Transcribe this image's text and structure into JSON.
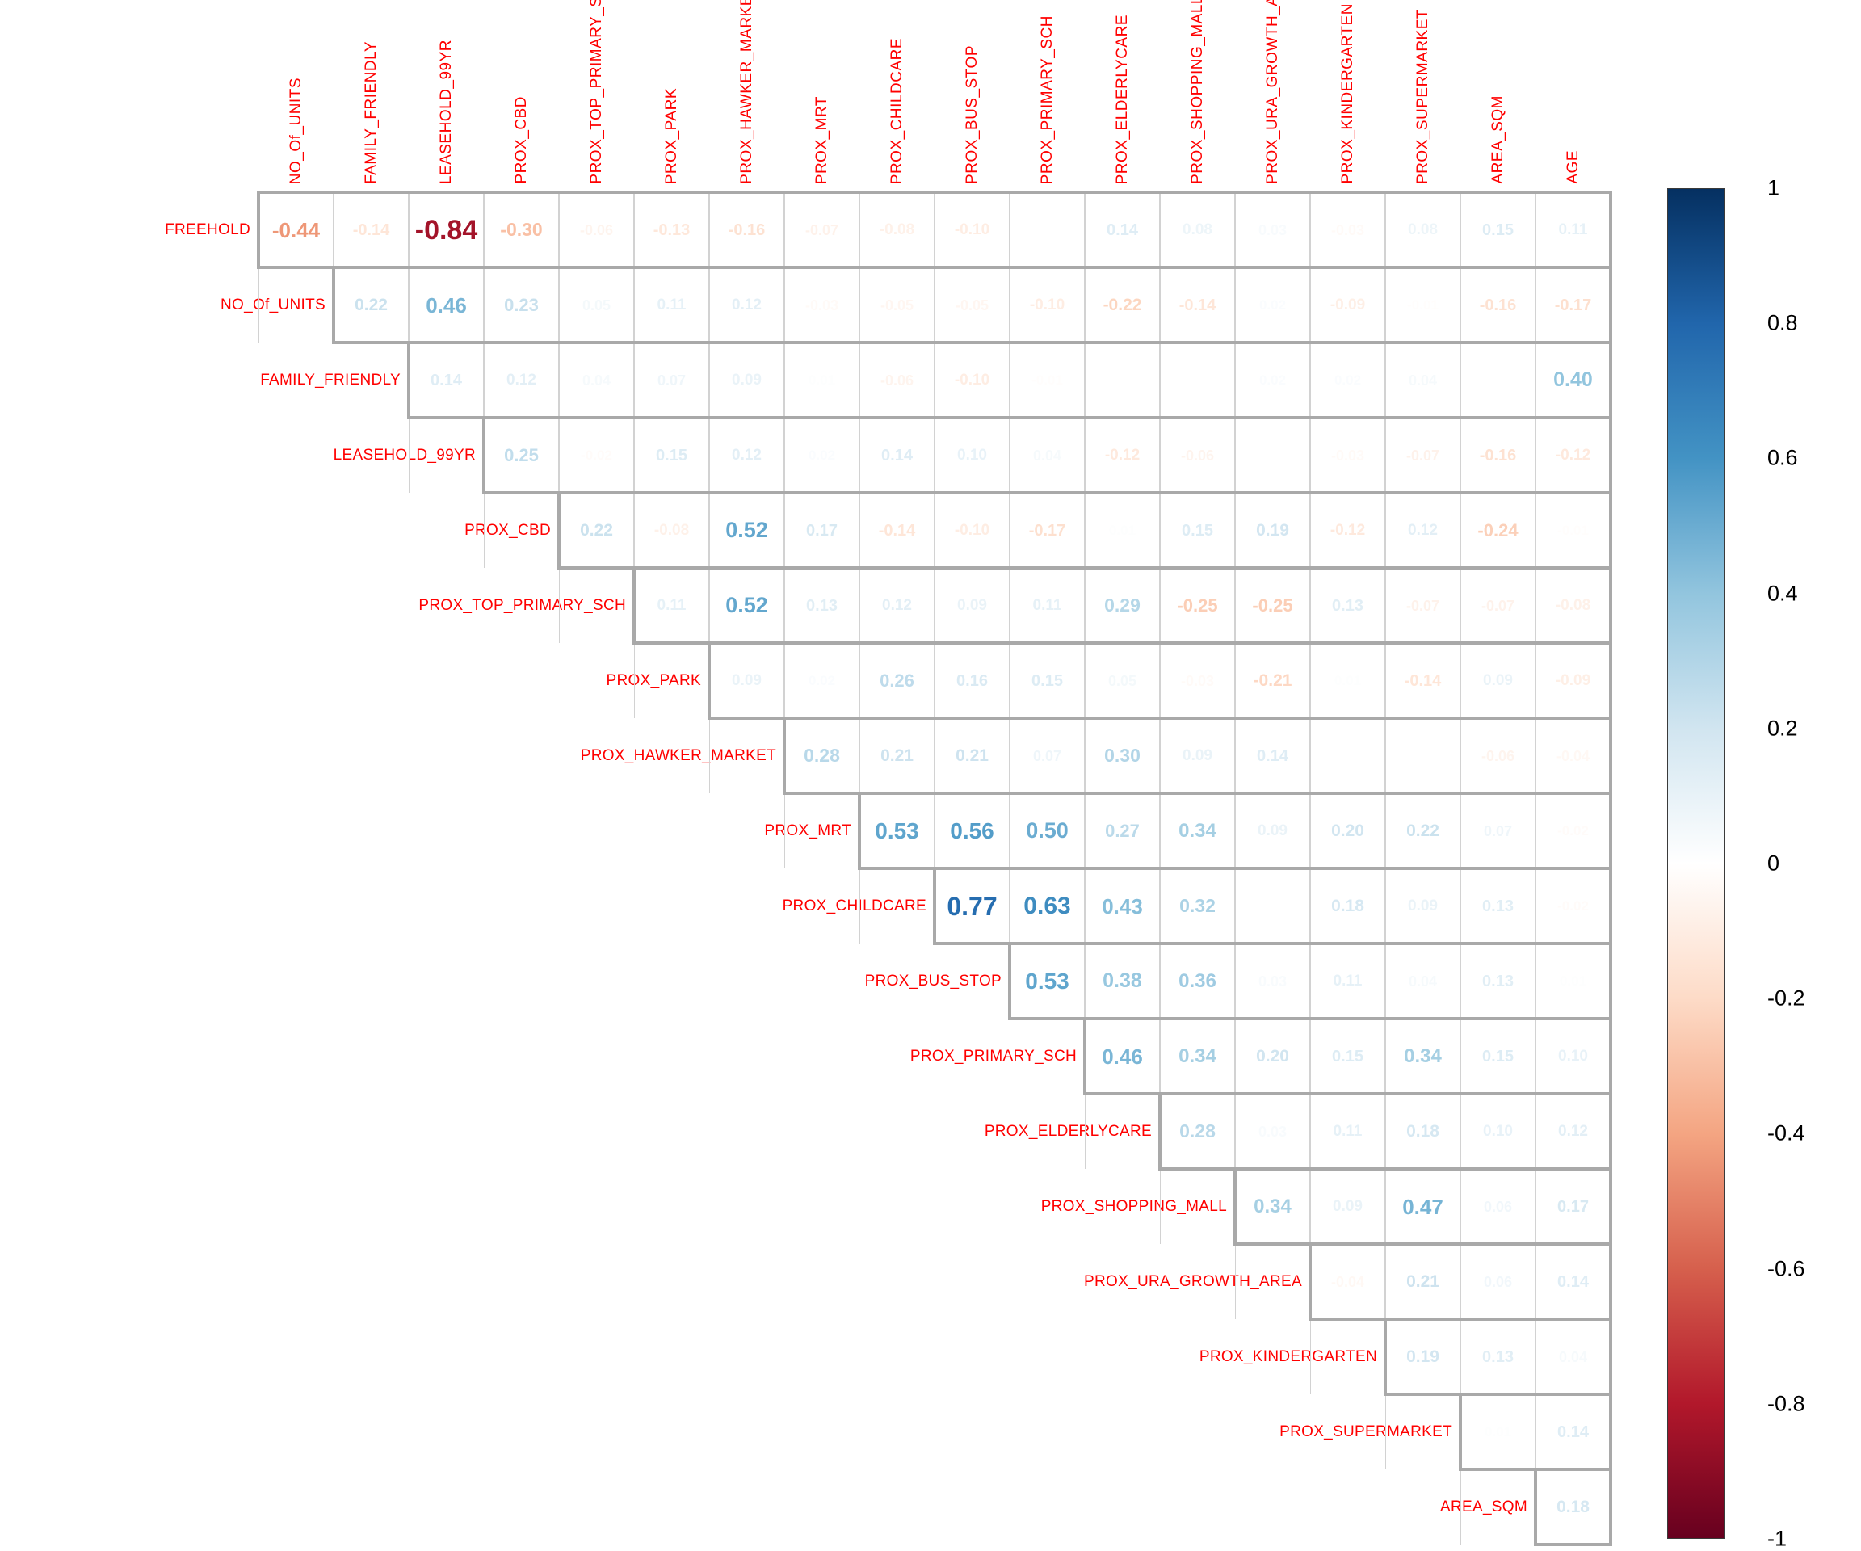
{
  "chart_data": {
    "type": "heatmap",
    "subtype": "correlation-matrix-upper-triangle",
    "title": "",
    "variables": [
      "FREEHOLD",
      "NO_Of_UNITS",
      "FAMILY_FRIENDLY",
      "LEASEHOLD_99YR",
      "PROX_CBD",
      "PROX_TOP_PRIMARY_SCH",
      "PROX_PARK",
      "PROX_HAWKER_MARKET",
      "PROX_MRT",
      "PROX_CHILDCARE",
      "PROX_BUS_STOP",
      "PROX_PRIMARY_SCH",
      "PROX_ELDERLYCARE",
      "PROX_SHOPPING_MALL",
      "PROX_URA_GROWTH_AREA",
      "PROX_KINDERGARTEN",
      "PROX_SUPERMARKET",
      "AREA_SQM",
      "AGE"
    ],
    "upper_triangle_values": [
      [
        -0.44,
        -0.14,
        -0.84,
        -0.3,
        -0.06,
        -0.13,
        -0.16,
        -0.07,
        -0.08,
        -0.1,
        0.0,
        0.14,
        0.08,
        0.03,
        -0.03,
        0.08,
        0.15,
        0.11
      ],
      [
        0.22,
        0.46,
        0.23,
        0.05,
        0.11,
        0.12,
        -0.03,
        -0.05,
        -0.05,
        -0.1,
        -0.22,
        -0.14,
        0.02,
        -0.09,
        -0.01,
        -0.16,
        -0.17
      ],
      [
        0.14,
        0.12,
        0.04,
        0.07,
        0.09,
        0.01,
        -0.06,
        -0.1,
        -0.01,
        0.0,
        0.0,
        0.02,
        0.02,
        0.04,
        0.0,
        0.4
      ],
      [
        0.25,
        -0.02,
        0.15,
        0.12,
        0.02,
        0.14,
        0.1,
        0.04,
        -0.12,
        -0.06,
        0.0,
        -0.03,
        -0.07,
        -0.16,
        -0.12
      ],
      [
        0.22,
        -0.08,
        0.52,
        0.17,
        -0.14,
        -0.1,
        -0.17,
        0.01,
        0.15,
        0.19,
        -0.12,
        0.12,
        -0.24,
        -0.01
      ],
      [
        0.11,
        0.52,
        0.13,
        0.12,
        0.09,
        0.11,
        0.29,
        -0.25,
        -0.25,
        0.13,
        -0.07,
        -0.07,
        -0.08
      ],
      [
        0.09,
        0.02,
        0.26,
        0.16,
        0.15,
        0.05,
        -0.03,
        -0.21,
        0.01,
        -0.14,
        0.09,
        -0.09
      ],
      [
        0.28,
        0.21,
        0.21,
        0.07,
        0.3,
        0.09,
        0.14,
        0.0,
        0.0,
        -0.06,
        -0.04
      ],
      [
        0.53,
        0.56,
        0.5,
        0.27,
        0.34,
        0.09,
        0.2,
        0.22,
        0.07,
        -0.02
      ],
      [
        0.77,
        0.63,
        0.43,
        0.32,
        0.0,
        0.18,
        0.09,
        0.13,
        -0.02
      ],
      [
        0.53,
        0.38,
        0.36,
        0.03,
        0.11,
        0.04,
        0.13,
        0.01
      ],
      [
        0.46,
        0.34,
        0.2,
        0.15,
        0.34,
        0.15,
        0.1
      ],
      [
        0.28,
        0.03,
        0.11,
        0.18,
        0.1,
        0.12
      ],
      [
        0.34,
        0.09,
        0.47,
        0.06,
        0.17
      ],
      [
        -0.04,
        0.21,
        0.06,
        0.14
      ],
      [
        0.19,
        0.13,
        0.04
      ],
      [
        0.01,
        0.14
      ],
      [
        0.18
      ]
    ],
    "value_range": [
      -1,
      1
    ],
    "value_decimals": 2,
    "colorbar_ticks": [
      "1",
      "0.8",
      "0.6",
      "0.4",
      "0.2",
      "0",
      "-0.2",
      "-0.4",
      "-0.6",
      "-0.8",
      "-1"
    ],
    "legend_position": "right",
    "grid": true,
    "colors": {
      "label_text": "#FF0000",
      "tick_text": "#000000",
      "grid_inner": "#D2D2D2",
      "grid_outer": "#A9A9A9",
      "colorbar_border": "#3A3A3A",
      "background": "#FFFFFF",
      "palette_stops": [
        {
          "t": -1.0,
          "color": "#67001F"
        },
        {
          "t": -0.8,
          "color": "#B2182B"
        },
        {
          "t": -0.6,
          "color": "#D6604D"
        },
        {
          "t": -0.4,
          "color": "#F4A582"
        },
        {
          "t": -0.2,
          "color": "#FDDBC7"
        },
        {
          "t": 0.0,
          "color": "#FFFFFF"
        },
        {
          "t": 0.2,
          "color": "#D1E5F0"
        },
        {
          "t": 0.4,
          "color": "#92C5DE"
        },
        {
          "t": 0.6,
          "color": "#4393C4"
        },
        {
          "t": 0.8,
          "color": "#2166AC"
        },
        {
          "t": 1.0,
          "color": "#053061"
        }
      ]
    }
  }
}
